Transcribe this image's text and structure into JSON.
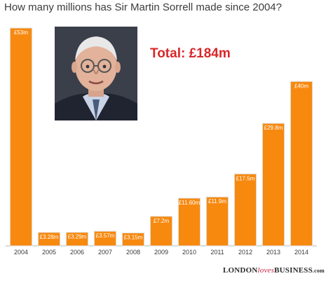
{
  "chart_data": {
    "type": "bar",
    "title": "How many millions has Sir Martin Sorrell made since 2004?",
    "categories": [
      "2004",
      "2005",
      "2006",
      "2007",
      "2008",
      "2009",
      "2010",
      "2011",
      "2012",
      "2013",
      "2014"
    ],
    "values": [
      53,
      3.28,
      3.29,
      3.57,
      3.15,
      7.2,
      11.6,
      11.9,
      17.5,
      29.8,
      40
    ],
    "value_labels": [
      "£53m",
      "£3.28m",
      "£3.29m",
      "£3.57m",
      "£3.15m",
      "£7.2m",
      "£11.60m",
      "£11.9m",
      "£17.5m",
      "£29.8m",
      "£40m"
    ],
    "ylim": [
      0,
      53
    ],
    "grid": false,
    "bar_color": "#F7890F",
    "annotation": "Total: £184m",
    "annotation_color": "#d7282b"
  },
  "photo": {
    "subject": "portrait"
  },
  "brand": {
    "part1": "LONDON",
    "part2": "loves",
    "part3": "BUSINESS",
    "part4": ".com"
  }
}
